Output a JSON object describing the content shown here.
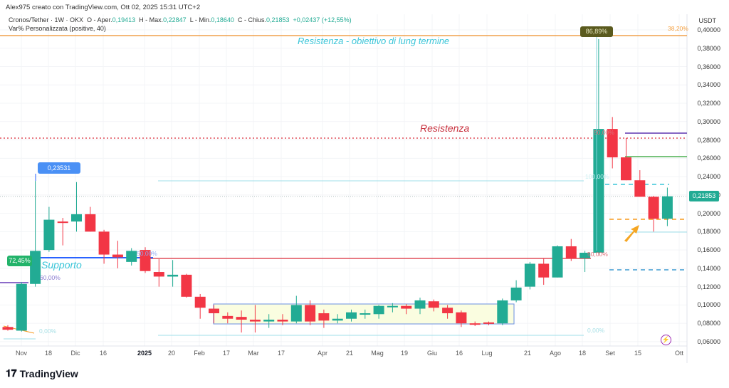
{
  "header": {
    "credit": "Alex975 creato con TradingView.com, Ott 02, 2025 15:31 UTC+2",
    "symbol": "Cronos/Tether · 1W · OKX",
    "open_label": "O - Aper.",
    "open": "0,19413",
    "high_label": "H - Max.",
    "high": "0,22847",
    "low_label": "L - Min.",
    "low": "0,18640",
    "close_label": "C - Chius.",
    "close": "0,21853",
    "change": "+0,02437 (+12,55%)",
    "indicator": "Var% Personalizzata (positive, 40)"
  },
  "price_axis": {
    "currency": "USDT",
    "labels": [
      "0,40000",
      "0,38000",
      "0,36000",
      "0,34000",
      "0,32000",
      "0,30000",
      "0,28000",
      "0,26000",
      "0,24000",
      "0,22000",
      "0,20000",
      "0,18000",
      "0,16000",
      "0,14000",
      "0,12000",
      "0,10000",
      "0,08000",
      "0,06000"
    ],
    "current_price": "0,21853"
  },
  "time_axis": {
    "labels": [
      "Nov",
      "18",
      "Dic",
      "16",
      "2025",
      "20",
      "Feb",
      "17",
      "Mar",
      "17",
      "Apr",
      "21",
      "Mag",
      "19",
      "Giu",
      "16",
      "Lug",
      "21",
      "Ago",
      "18",
      "Set",
      "15",
      "Ott"
    ]
  },
  "annotations": {
    "resistance_target": "Resistenza - obiettivo di lung termine",
    "resistance": "Resistenza",
    "support": "Supporto",
    "high_marker": "0,23531",
    "gain_1": "72,45%",
    "gain_2": "86,89%",
    "fib_382": "38,20%",
    "pct_50_a": "50,00%",
    "pct_60": "60,00%",
    "pct_50_b": "50,00%",
    "pct_0_a": "0,00%",
    "pct_0_b": "0,00%",
    "pct_50_c": "50,00%",
    "pct_100": "100,00%"
  },
  "colors": {
    "up": "#22ab94",
    "down": "#f23645",
    "resistance": "#e04e5a",
    "support": "#2962ff",
    "note": "#3ac5d8"
  },
  "footer": {
    "brand": "TradingView"
  },
  "chart_data": {
    "type": "candlestick",
    "ylim": [
      0.06,
      0.4
    ],
    "candles": [
      [
        0.076,
        0.078,
        0.072,
        0.073
      ],
      [
        0.072,
        0.125,
        0.071,
        0.123
      ],
      [
        0.123,
        0.2353,
        0.12,
        0.159
      ],
      [
        0.16,
        0.207,
        0.158,
        0.193
      ],
      [
        0.191,
        0.195,
        0.165,
        0.19
      ],
      [
        0.191,
        0.234,
        0.18,
        0.199
      ],
      [
        0.199,
        0.207,
        0.18,
        0.18
      ],
      [
        0.18,
        0.182,
        0.145,
        0.155
      ],
      [
        0.155,
        0.17,
        0.14,
        0.152
      ],
      [
        0.147,
        0.162,
        0.143,
        0.159
      ],
      [
        0.16,
        0.163,
        0.135,
        0.137
      ],
      [
        0.136,
        0.15,
        0.12,
        0.131
      ],
      [
        0.131,
        0.149,
        0.12,
        0.133
      ],
      [
        0.133,
        0.134,
        0.108,
        0.109
      ],
      [
        0.109,
        0.112,
        0.085,
        0.097
      ],
      [
        0.096,
        0.1,
        0.08,
        0.091
      ],
      [
        0.088,
        0.092,
        0.08,
        0.085
      ],
      [
        0.087,
        0.094,
        0.07,
        0.084
      ],
      [
        0.084,
        0.1,
        0.07,
        0.082
      ],
      [
        0.082,
        0.09,
        0.075,
        0.084
      ],
      [
        0.084,
        0.09,
        0.078,
        0.082
      ],
      [
        0.082,
        0.11,
        0.08,
        0.1
      ],
      [
        0.1,
        0.105,
        0.078,
        0.082
      ],
      [
        0.091,
        0.095,
        0.075,
        0.083
      ],
      [
        0.083,
        0.09,
        0.08,
        0.085
      ],
      [
        0.085,
        0.095,
        0.082,
        0.092
      ],
      [
        0.09,
        0.095,
        0.085,
        0.091
      ],
      [
        0.09,
        0.1,
        0.085,
        0.099
      ],
      [
        0.098,
        0.102,
        0.092,
        0.099
      ],
      [
        0.099,
        0.101,
        0.09,
        0.096
      ],
      [
        0.096,
        0.108,
        0.09,
        0.105
      ],
      [
        0.104,
        0.106,
        0.093,
        0.097
      ],
      [
        0.097,
        0.1,
        0.085,
        0.091
      ],
      [
        0.092,
        0.094,
        0.076,
        0.08
      ],
      [
        0.08,
        0.082,
        0.077,
        0.079
      ],
      [
        0.081,
        0.082,
        0.078,
        0.08
      ],
      [
        0.08,
        0.107,
        0.078,
        0.105
      ],
      [
        0.105,
        0.127,
        0.103,
        0.119
      ],
      [
        0.12,
        0.147,
        0.117,
        0.145
      ],
      [
        0.145,
        0.151,
        0.122,
        0.13
      ],
      [
        0.13,
        0.165,
        0.13,
        0.164
      ],
      [
        0.164,
        0.172,
        0.148,
        0.151
      ],
      [
        0.151,
        0.159,
        0.136,
        0.157
      ],
      [
        0.157,
        0.39,
        0.155,
        0.292
      ],
      [
        0.292,
        0.305,
        0.249,
        0.261
      ],
      [
        0.261,
        0.282,
        0.236,
        0.236
      ],
      [
        0.236,
        0.247,
        0.218,
        0.218
      ],
      [
        0.218,
        0.219,
        0.18,
        0.194
      ],
      [
        0.194,
        0.228,
        0.186,
        0.2185
      ]
    ]
  }
}
